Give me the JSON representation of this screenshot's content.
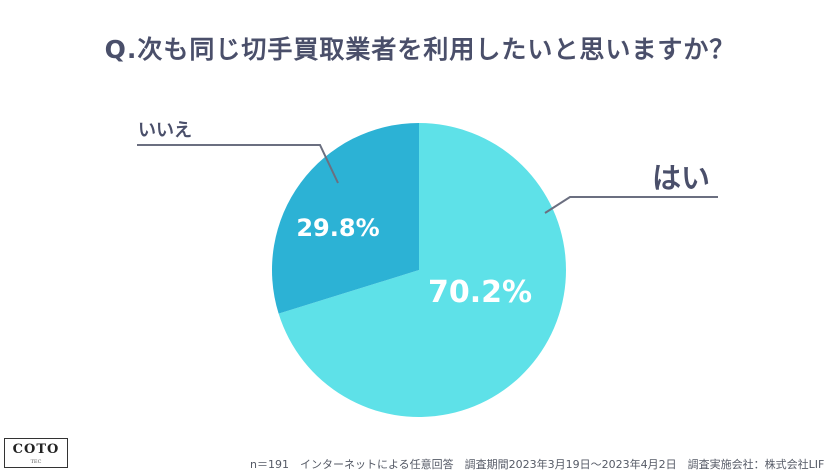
{
  "title": "Q.次も同じ切手買取業者を利用したいと思いますか？",
  "colors": {
    "yes": "#5ee1e8",
    "no": "#2cb2d5",
    "title": "#4a4f6a",
    "leader": "#6b6f80"
  },
  "chart_data": {
    "type": "pie",
    "slices": [
      {
        "label": "はい",
        "value": 70.2,
        "display": "70.2%"
      },
      {
        "label": "いいえ",
        "value": 29.8,
        "display": "29.8%"
      }
    ]
  },
  "footer": "n＝191　インターネットによる任意回答　調査期間2023年3月19日～2023年4月2日　調査実施会社：株式会社LIF",
  "logo": {
    "main": "COTO",
    "sub": "TEC"
  }
}
